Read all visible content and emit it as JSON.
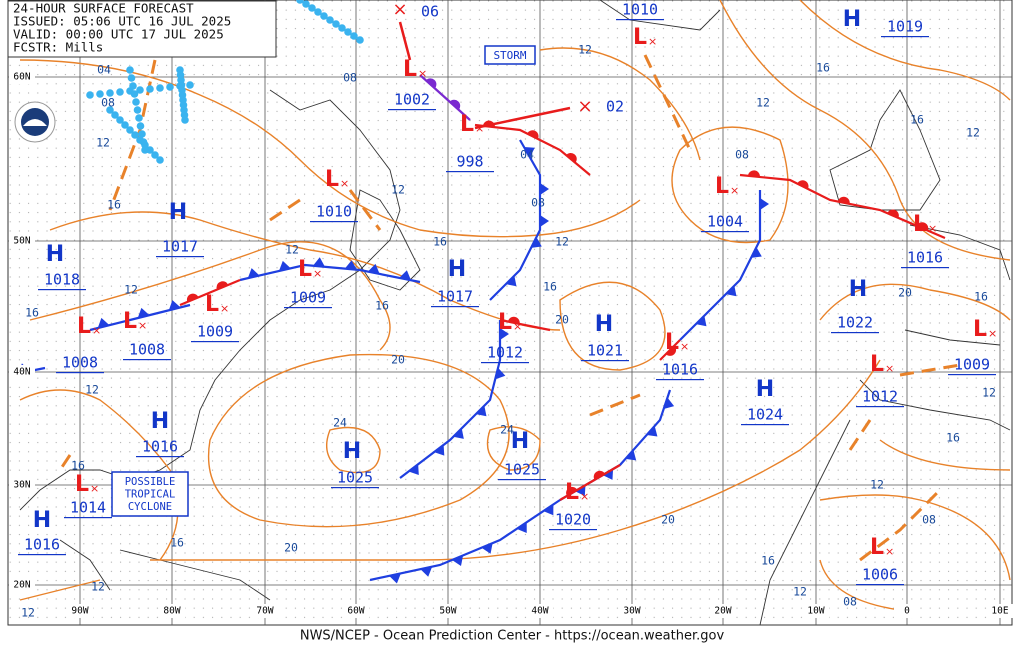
{
  "header": {
    "lines": [
      "24-HOUR SURFACE FORECAST",
      "ISSUED: 05:06 UTC 16 JUL 2025",
      "VALID:  00:00 UTC 17 JUL 2025",
      "FCSTR:  Mills"
    ]
  },
  "latitude_labels": [
    "60N",
    "50N",
    "40N",
    "30N",
    "20N"
  ],
  "longitude_labels": [
    "90W",
    "80W",
    "70W",
    "60W",
    "50W",
    "40W",
    "30W",
    "20W",
    "10W",
    "0",
    "10E"
  ],
  "pressure_centers": [
    {
      "symbol": "H",
      "pressure": "1019"
    },
    {
      "symbol": "L",
      "pressure": "1010"
    },
    {
      "symbol": "L",
      "pressure": "1002"
    },
    {
      "symbol": "L",
      "pressure": "998"
    },
    {
      "symbol": "L",
      "pressure": "1004"
    },
    {
      "symbol": "L",
      "pressure": "1016"
    },
    {
      "symbol": "H",
      "pressure": "1022"
    },
    {
      "symbol": "L",
      "pressure": "1009"
    },
    {
      "symbol": "L",
      "pressure": "1012"
    },
    {
      "symbol": "H",
      "pressure": "1024"
    },
    {
      "symbol": "L",
      "pressure": "1006"
    },
    {
      "symbol": "L",
      "pressure": "1016"
    },
    {
      "symbol": "H",
      "pressure": "1021"
    },
    {
      "symbol": "L",
      "pressure": "1012"
    },
    {
      "symbol": "H",
      "pressure": "1017"
    },
    {
      "symbol": "H",
      "pressure": "1025"
    },
    {
      "symbol": "H",
      "pressure": "1025"
    },
    {
      "symbol": "L",
      "pressure": "1020"
    },
    {
      "symbol": "L",
      "pressure": "1010"
    },
    {
      "symbol": "H",
      "pressure": "1017"
    },
    {
      "symbol": "H",
      "pressure": "1018"
    },
    {
      "symbol": "L",
      "pressure": "1009"
    },
    {
      "symbol": "L",
      "pressure": "1009"
    },
    {
      "symbol": "L",
      "pressure": "1008"
    },
    {
      "symbol": "L",
      "pressure": "1008"
    },
    {
      "symbol": "H",
      "pressure": "1016"
    },
    {
      "symbol": "L",
      "pressure": "1014"
    },
    {
      "symbol": "H",
      "pressure": "1016"
    }
  ],
  "future_positions": [
    "06",
    "02"
  ],
  "isobar_labels": [
    "04",
    "08",
    "12",
    "16",
    "08",
    "12",
    "16",
    "12",
    "16",
    "20",
    "08",
    "04",
    "12",
    "16",
    "12",
    "16",
    "12",
    "08",
    "20",
    "16",
    "12",
    "16",
    "12",
    "08",
    "16",
    "12",
    "08",
    "20",
    "24",
    "20",
    "24",
    "12",
    "16",
    "12",
    "16",
    "12",
    "16",
    "16",
    "20",
    "12",
    "12"
  ],
  "annotations": {
    "storm": "STORM",
    "tropical": [
      "POSSIBLE",
      "TROPICAL",
      "CYCLONE"
    ]
  },
  "footer": "NWS/NCEP - Ocean Prediction Center - https://ocean.weather.gov"
}
